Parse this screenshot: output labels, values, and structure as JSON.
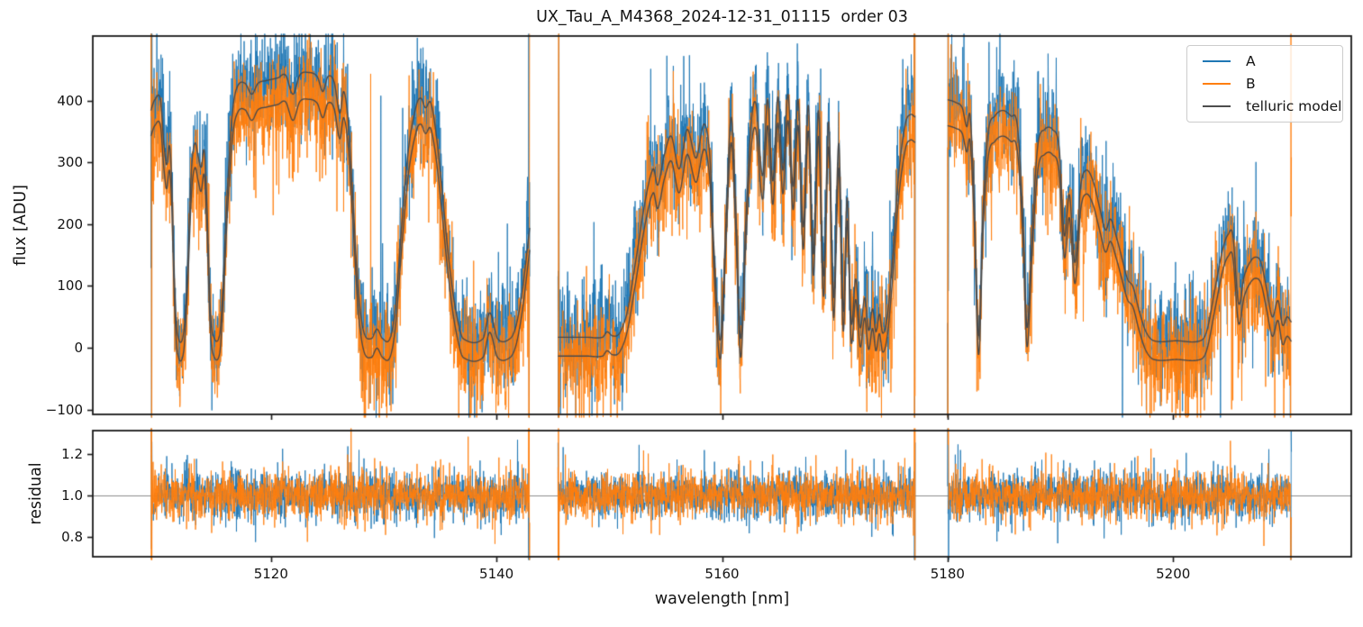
{
  "chart_data": {
    "type": "line",
    "title": "UX_Tau_A_M4368_2024-12-31_01115  order 03",
    "xlabel": "wavelength [nm]",
    "xlim": [
      5104.2,
      5215.8
    ],
    "xticks": [
      {
        "v": 5120,
        "label": "5120"
      },
      {
        "v": 5140,
        "label": "5140"
      },
      {
        "v": 5160,
        "label": "5160"
      },
      {
        "v": 5180,
        "label": "5180"
      },
      {
        "v": 5200,
        "label": "5200"
      }
    ],
    "panels": [
      {
        "id": "flux",
        "ylabel": "flux [ADU]",
        "ylim": [
          -108,
          505
        ],
        "yticks": [
          {
            "v": 400,
            "label": "400"
          },
          {
            "v": 300,
            "label": "300"
          },
          {
            "v": 200,
            "label": "200"
          },
          {
            "v": 100,
            "label": "100"
          },
          {
            "v": 0,
            "label": "0"
          },
          {
            "v": -100,
            "label": "−100"
          }
        ]
      },
      {
        "id": "residual",
        "ylabel": "residual",
        "ylim": [
          0.7075,
          1.3097
        ],
        "yticks": [
          {
            "v": 1.2,
            "label": "1.2"
          },
          {
            "v": 1.0,
            "label": "1.0"
          },
          {
            "v": 0.8,
            "label": "0.8"
          }
        ],
        "hline": {
          "y": 1.0,
          "color": "#8c8c8c"
        }
      }
    ],
    "legend": {
      "position": "upper right",
      "entries": [
        {
          "label": "A",
          "color": "#1f77b4"
        },
        {
          "label": "B",
          "color": "#ff7f0e"
        },
        {
          "label": "telluric model",
          "color": "#4d4d4d"
        }
      ]
    },
    "series": {
      "A": {
        "color": "#1f77b4",
        "seed": 20241231
      },
      "B": {
        "color": "#ff7f0e",
        "seed": 11501115
      },
      "model": {
        "color": "#4a4a4a",
        "A_amp": 440,
        "A_offset": 6,
        "B_scale": 0.97,
        "B_offset": -30
      }
    },
    "noise": {
      "sample_step_nm": 0.022,
      "flux_sigma": 40,
      "flux_extra_prob": 0.25,
      "flux_extra_sigma": 45,
      "spike_prob": 0.003,
      "spike_sigma": 220,
      "edge_samples": 5,
      "edge_amp": 700,
      "residual_sigma": 0.05,
      "residual_extra_prob": 0.2,
      "residual_extra_sigma": 0.07,
      "residual_edge_amp": 1.3
    },
    "segments": [
      {
        "x_range": [
          5109.35,
          5142.95
        ],
        "transmission_points": [
          [
            5109.35,
            0.86
          ],
          [
            5109.7,
            0.9
          ],
          [
            5110.2,
            0.9
          ],
          [
            5110.5,
            0.74
          ],
          [
            5110.75,
            0.66
          ],
          [
            5111.0,
            0.73
          ],
          [
            5111.2,
            0.6
          ],
          [
            5111.45,
            0.22
          ],
          [
            5111.7,
            0.04
          ],
          [
            5112.25,
            0.04
          ],
          [
            5112.6,
            0.28
          ],
          [
            5112.95,
            0.64
          ],
          [
            5113.25,
            0.74
          ],
          [
            5113.55,
            0.69
          ],
          [
            5113.8,
            0.65
          ],
          [
            5114.1,
            0.71
          ],
          [
            5114.35,
            0.48
          ],
          [
            5114.6,
            0.14
          ],
          [
            5114.85,
            0.035
          ],
          [
            5115.45,
            0.035
          ],
          [
            5115.75,
            0.22
          ],
          [
            5116.15,
            0.58
          ],
          [
            5116.6,
            0.86
          ],
          [
            5117.05,
            0.95
          ],
          [
            5117.7,
            0.96
          ],
          [
            5118.3,
            0.92
          ],
          [
            5118.85,
            0.96
          ],
          [
            5119.6,
            0.97
          ],
          [
            5120.6,
            0.98
          ],
          [
            5121.3,
            0.99
          ],
          [
            5121.95,
            0.92
          ],
          [
            5122.55,
            0.99
          ],
          [
            5123.3,
            1.0
          ],
          [
            5124.1,
            0.985
          ],
          [
            5124.6,
            0.93
          ],
          [
            5125.05,
            0.985
          ],
          [
            5125.6,
            0.965
          ],
          [
            5126.1,
            0.85
          ],
          [
            5126.45,
            0.93
          ],
          [
            5126.85,
            0.82
          ],
          [
            5127.25,
            0.55
          ],
          [
            5127.7,
            0.22
          ],
          [
            5128.2,
            0.05
          ],
          [
            5128.9,
            0.02
          ],
          [
            5129.4,
            0.055
          ],
          [
            5129.9,
            0.02
          ],
          [
            5130.55,
            0.02
          ],
          [
            5131.05,
            0.14
          ],
          [
            5131.6,
            0.44
          ],
          [
            5132.2,
            0.72
          ],
          [
            5132.9,
            0.88
          ],
          [
            5133.3,
            0.905
          ],
          [
            5133.7,
            0.87
          ],
          [
            5134.15,
            0.89
          ],
          [
            5134.6,
            0.79
          ],
          [
            5135.1,
            0.6
          ],
          [
            5135.6,
            0.38
          ],
          [
            5136.1,
            0.2
          ],
          [
            5136.6,
            0.08
          ],
          [
            5137.05,
            0.02
          ],
          [
            5138.8,
            0.02
          ],
          [
            5139.4,
            0.115
          ],
          [
            5140.1,
            0.02
          ],
          [
            5141.2,
            0.02
          ],
          [
            5141.75,
            0.07
          ],
          [
            5142.3,
            0.2
          ],
          [
            5142.95,
            0.43
          ]
        ]
      },
      {
        "x_range": [
          5145.45,
          5177.15
        ],
        "transmission_points": [
          [
            5145.45,
            0.025
          ],
          [
            5146.5,
            0.025
          ],
          [
            5148.0,
            0.025
          ],
          [
            5149.4,
            0.025
          ],
          [
            5149.8,
            0.045
          ],
          [
            5150.3,
            0.03
          ],
          [
            5150.9,
            0.04
          ],
          [
            5151.6,
            0.12
          ],
          [
            5152.4,
            0.32
          ],
          [
            5153.2,
            0.53
          ],
          [
            5153.9,
            0.645
          ],
          [
            5154.3,
            0.585
          ],
          [
            5154.9,
            0.7
          ],
          [
            5155.5,
            0.765
          ],
          [
            5156.2,
            0.645
          ],
          [
            5156.9,
            0.79
          ],
          [
            5157.7,
            0.685
          ],
          [
            5158.4,
            0.81
          ],
          [
            5158.9,
            0.7
          ],
          [
            5159.3,
            0.34
          ],
          [
            5159.85,
            0.015
          ],
          [
            5160.35,
            0.45
          ],
          [
            5160.8,
            0.835
          ],
          [
            5161.2,
            0.52
          ],
          [
            5161.65,
            0.02
          ],
          [
            5162.1,
            0.45
          ],
          [
            5162.55,
            0.8
          ],
          [
            5163.0,
            0.885
          ],
          [
            5163.6,
            0.62
          ],
          [
            5164.05,
            0.9
          ],
          [
            5164.5,
            0.6
          ],
          [
            5164.95,
            0.91
          ],
          [
            5165.4,
            0.64
          ],
          [
            5165.85,
            0.92
          ],
          [
            5166.3,
            0.58
          ],
          [
            5166.75,
            0.9
          ],
          [
            5167.2,
            0.43
          ],
          [
            5167.65,
            0.88
          ],
          [
            5168.1,
            0.33
          ],
          [
            5168.55,
            0.86
          ],
          [
            5169.0,
            0.25
          ],
          [
            5169.45,
            0.82
          ],
          [
            5169.9,
            0.17
          ],
          [
            5170.35,
            0.74
          ],
          [
            5170.75,
            0.12
          ],
          [
            5171.1,
            0.54
          ],
          [
            5171.45,
            0.08
          ],
          [
            5171.85,
            0.24
          ],
          [
            5172.25,
            0.06
          ],
          [
            5172.65,
            0.17
          ],
          [
            5173.0,
            0.05
          ],
          [
            5173.35,
            0.13
          ],
          [
            5173.65,
            0.045
          ],
          [
            5173.95,
            0.11
          ],
          [
            5174.25,
            0.04
          ],
          [
            5174.65,
            0.1
          ],
          [
            5175.05,
            0.28
          ],
          [
            5175.65,
            0.62
          ],
          [
            5176.25,
            0.81
          ],
          [
            5176.7,
            0.845
          ],
          [
            5177.15,
            0.835
          ]
        ]
      },
      {
        "x_range": [
          5180.0,
          5210.5
        ],
        "transmission_points": [
          [
            5180.0,
            0.9
          ],
          [
            5180.7,
            0.89
          ],
          [
            5181.3,
            0.87
          ],
          [
            5181.7,
            0.8
          ],
          [
            5182.0,
            0.84
          ],
          [
            5182.35,
            0.55
          ],
          [
            5182.75,
            0.03
          ],
          [
            5183.15,
            0.5
          ],
          [
            5183.6,
            0.78
          ],
          [
            5184.2,
            0.84
          ],
          [
            5184.9,
            0.86
          ],
          [
            5185.6,
            0.84
          ],
          [
            5186.2,
            0.8
          ],
          [
            5186.7,
            0.45
          ],
          [
            5187.05,
            0.06
          ],
          [
            5187.5,
            0.42
          ],
          [
            5188.0,
            0.73
          ],
          [
            5188.6,
            0.79
          ],
          [
            5189.3,
            0.79
          ],
          [
            5189.9,
            0.72
          ],
          [
            5190.35,
            0.4
          ],
          [
            5190.8,
            0.55
          ],
          [
            5191.3,
            0.3
          ],
          [
            5191.8,
            0.58
          ],
          [
            5192.3,
            0.64
          ],
          [
            5192.9,
            0.6
          ],
          [
            5193.5,
            0.5
          ],
          [
            5194.0,
            0.42
          ],
          [
            5194.45,
            0.46
          ],
          [
            5195.0,
            0.39
          ],
          [
            5195.5,
            0.31
          ],
          [
            5195.95,
            0.24
          ],
          [
            5196.45,
            0.21
          ],
          [
            5197.0,
            0.12
          ],
          [
            5197.6,
            0.045
          ],
          [
            5198.3,
            0.012
          ],
          [
            5200.3,
            0.012
          ],
          [
            5202.4,
            0.012
          ],
          [
            5203.0,
            0.05
          ],
          [
            5203.7,
            0.2
          ],
          [
            5204.4,
            0.35
          ],
          [
            5204.9,
            0.405
          ],
          [
            5205.3,
            0.4
          ],
          [
            5205.8,
            0.15
          ],
          [
            5206.3,
            0.25
          ],
          [
            5206.8,
            0.3
          ],
          [
            5207.3,
            0.32
          ],
          [
            5207.8,
            0.3
          ],
          [
            5208.3,
            0.2
          ],
          [
            5208.8,
            0.1
          ],
          [
            5209.3,
            0.16
          ],
          [
            5209.7,
            0.07
          ],
          [
            5210.1,
            0.1
          ],
          [
            5210.5,
            0.08
          ]
        ]
      }
    ]
  }
}
